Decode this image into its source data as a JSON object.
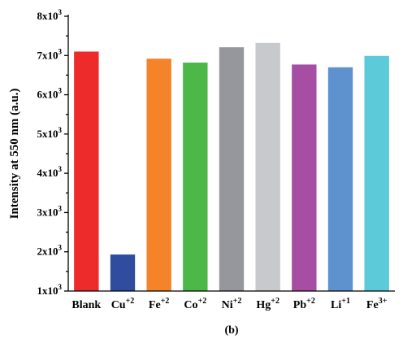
{
  "chart_data": {
    "type": "bar",
    "title": "",
    "ylabel": "Intensity at 550 nm (a.u.)",
    "xlabel": "",
    "ylim": [
      1000,
      8000
    ],
    "yticks": [
      {
        "value": 1000,
        "mantissa": "1x10",
        "exp": "3"
      },
      {
        "value": 2000,
        "mantissa": "2x10",
        "exp": "3"
      },
      {
        "value": 3000,
        "mantissa": "3x10",
        "exp": "3"
      },
      {
        "value": 4000,
        "mantissa": "4x10",
        "exp": "3"
      },
      {
        "value": 5000,
        "mantissa": "5x10",
        "exp": "3"
      },
      {
        "value": 6000,
        "mantissa": "6x10",
        "exp": "3"
      },
      {
        "value": 7000,
        "mantissa": "7x10",
        "exp": "3"
      },
      {
        "value": 8000,
        "mantissa": "8x10",
        "exp": "3"
      }
    ],
    "categories": [
      {
        "base": "Blank",
        "sup": ""
      },
      {
        "base": "Cu",
        "sup": "+2"
      },
      {
        "base": "Fe",
        "sup": "+2"
      },
      {
        "base": "Co",
        "sup": "+2"
      },
      {
        "base": "Ni",
        "sup": "+2"
      },
      {
        "base": "Hg",
        "sup": "+2"
      },
      {
        "base": "Pb",
        "sup": "+2"
      },
      {
        "base": "Li",
        "sup": "+1"
      },
      {
        "base": "Fe",
        "sup": "3+"
      }
    ],
    "values": [
      7100,
      1930,
      6920,
      6820,
      7210,
      7320,
      6770,
      6700,
      6990
    ],
    "colors": [
      "#ee2b2b",
      "#2f4c9e",
      "#f5832a",
      "#4cb847",
      "#95979c",
      "#c8c9cc",
      "#a64ea4",
      "#5e92cf",
      "#5ccad8"
    ],
    "grid": false,
    "legend": "none"
  },
  "caption": "(b)"
}
